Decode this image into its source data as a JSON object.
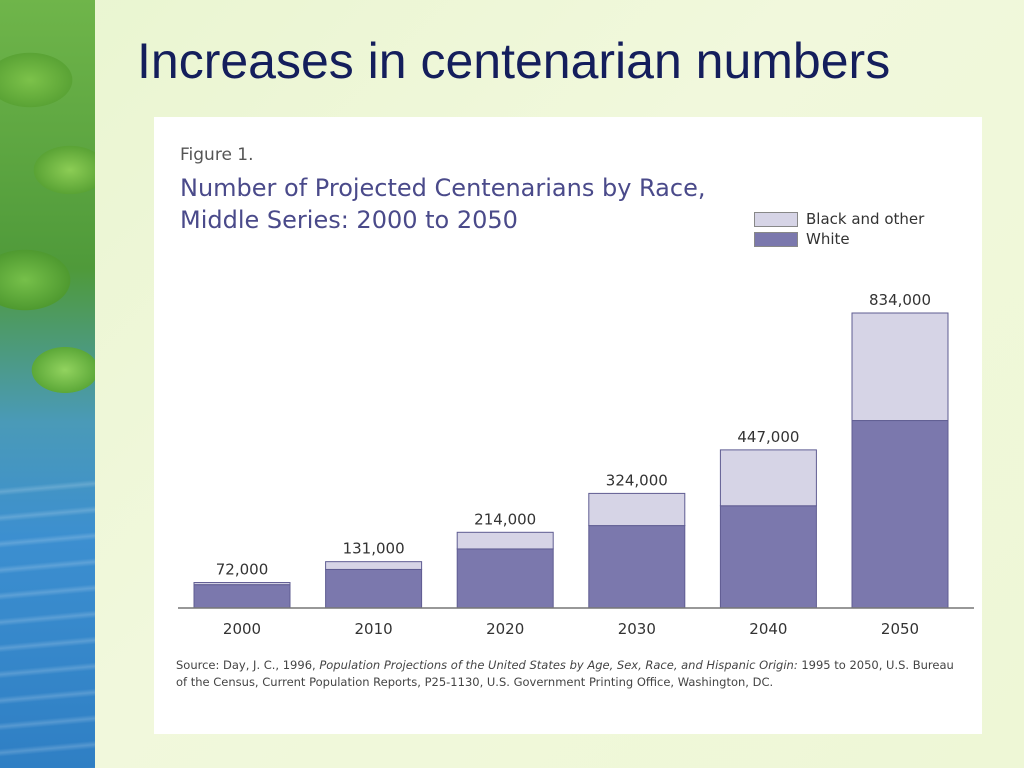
{
  "slide": {
    "title": "Increases in centenarian numbers"
  },
  "figure": {
    "label": "Figure 1.",
    "source_prefix": "Source:  Day, J. C., 1996, ",
    "source_title": "Population Projections of the United States by Age, Sex, Race, and Hispanic Origin:",
    "source_suffix": " 1995 to 2050, U.S. Bureau of the Census, Current Population Reports, P25-1130, U.S. Government Printing Office, Washington, DC."
  },
  "chart_data": {
    "type": "bar",
    "stacked": true,
    "title": "Number of Projected Centenarians by Race, Middle Series:  2000 to 2050",
    "categories": [
      "2000",
      "2010",
      "2020",
      "2030",
      "2040",
      "2050"
    ],
    "series": [
      {
        "name": "White",
        "values": [
          66000,
          109000,
          167000,
          233000,
          289000,
          530000
        ],
        "color": "#7b78ad"
      },
      {
        "name": "Black and other",
        "values": [
          6000,
          22000,
          47000,
          91000,
          158000,
          304000
        ],
        "color": "#d6d4e6"
      }
    ],
    "totals": [
      72000,
      131000,
      214000,
      324000,
      447000,
      834000
    ],
    "total_labels": [
      "72,000",
      "131,000",
      "214,000",
      "324,000",
      "447,000",
      "834,000"
    ],
    "legend_order": [
      "Black and other",
      "White"
    ],
    "legend_position": "top-right",
    "ylim": [
      0,
      834000
    ],
    "grid": false,
    "xlabel": "",
    "ylabel": ""
  }
}
